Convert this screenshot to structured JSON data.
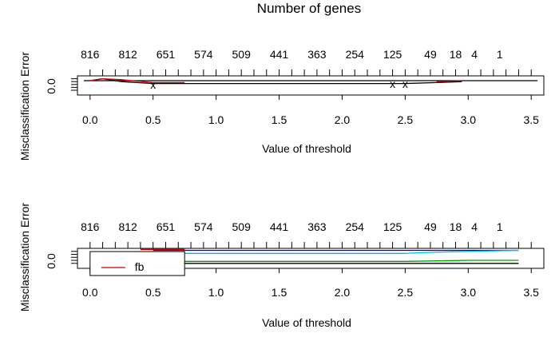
{
  "chart_data": [
    {
      "type": "line",
      "title": "Number of genes",
      "xlabel": "Value of threshold",
      "ylabel": "Misclassification Error",
      "xlim": [
        -0.1,
        3.6
      ],
      "x_ticks": [
        "0.0",
        "0.5",
        "1.0",
        "1.5",
        "2.0",
        "2.5",
        "3.0",
        "3.5"
      ],
      "y_ticks": [
        "0.0"
      ],
      "top_axis_labels": [
        "816",
        "812",
        "651",
        "574",
        "509",
        "441",
        "363",
        "254",
        "125",
        "49",
        "18",
        "4",
        "1"
      ],
      "top_axis_label_x": [
        0.0,
        0.3,
        0.6,
        0.9,
        1.2,
        1.5,
        1.8,
        2.1,
        2.4,
        2.7,
        2.9,
        3.05,
        3.25
      ],
      "y_range": [
        -0.05,
        0.15
      ],
      "series": [
        {
          "color": "#000000",
          "x": [
            -0.05,
            3.55
          ],
          "y": [
            0.1,
            0.1
          ]
        },
        {
          "color": "#000000",
          "x": [
            0.0,
            0.1,
            0.25,
            0.5,
            0.75,
            1.0,
            1.5,
            2.0,
            2.4,
            2.5,
            2.75,
            2.95
          ],
          "y": [
            0.1,
            0.12,
            0.09,
            0.07,
            0.07,
            0.07,
            0.07,
            0.07,
            0.07,
            0.07,
            0.08,
            0.09
          ]
        },
        {
          "color": "#cc0000",
          "x": [
            0.0,
            0.1,
            0.25,
            0.5,
            0.75
          ],
          "y": [
            0.1,
            0.12,
            0.11,
            0.08,
            0.08
          ]
        },
        {
          "color": "#cc0000",
          "x": [
            2.75,
            2.95
          ],
          "y": [
            0.09,
            0.1
          ]
        }
      ],
      "markers": [
        {
          "x": 0.5,
          "y": 0.05,
          "symbol": "x"
        },
        {
          "x": 2.4,
          "y": 0.06,
          "symbol": "x"
        },
        {
          "x": 2.5,
          "y": 0.06,
          "symbol": "x"
        }
      ]
    },
    {
      "type": "line",
      "title": "",
      "xlabel": "Value of threshold",
      "ylabel": "Misclassification Error",
      "xlim": [
        -0.1,
        3.6
      ],
      "x_ticks": [
        "0.0",
        "0.5",
        "1.0",
        "1.5",
        "2.0",
        "2.5",
        "3.0",
        "3.5"
      ],
      "y_ticks": [
        "0.0"
      ],
      "top_axis_labels": [
        "816",
        "812",
        "651",
        "574",
        "509",
        "441",
        "363",
        "254",
        "125",
        "49",
        "18",
        "4",
        "1"
      ],
      "top_axis_label_x": [
        0.0,
        0.3,
        0.6,
        0.9,
        1.2,
        1.5,
        1.8,
        2.1,
        2.4,
        2.7,
        2.9,
        3.05,
        3.25
      ],
      "y_range": [
        -0.05,
        0.15
      ],
      "series": [
        {
          "color": "#0000cc",
          "x": [
            0.5,
            0.75,
            3.4
          ],
          "y": [
            0.13,
            0.13,
            0.13
          ]
        },
        {
          "color": "#00bbee",
          "x": [
            0.75,
            2.5,
            2.7,
            3.0,
            3.4
          ],
          "y": [
            0.1,
            0.1,
            0.11,
            0.12,
            0.13
          ]
        },
        {
          "color": "#009900",
          "x": [
            0.75,
            2.5,
            3.0,
            3.4
          ],
          "y": [
            0.02,
            0.02,
            0.03,
            0.03
          ]
        },
        {
          "color": "#cc0000",
          "x": [
            0.4,
            0.75
          ],
          "y": [
            0.14,
            0.14
          ]
        },
        {
          "color": "#000000",
          "x": [
            0.75,
            3.4
          ],
          "y": [
            0.0,
            0.0
          ]
        }
      ],
      "legend": {
        "entries": [
          {
            "label": "fb",
            "color": "#cc0000"
          }
        ],
        "text": "fb"
      }
    }
  ]
}
